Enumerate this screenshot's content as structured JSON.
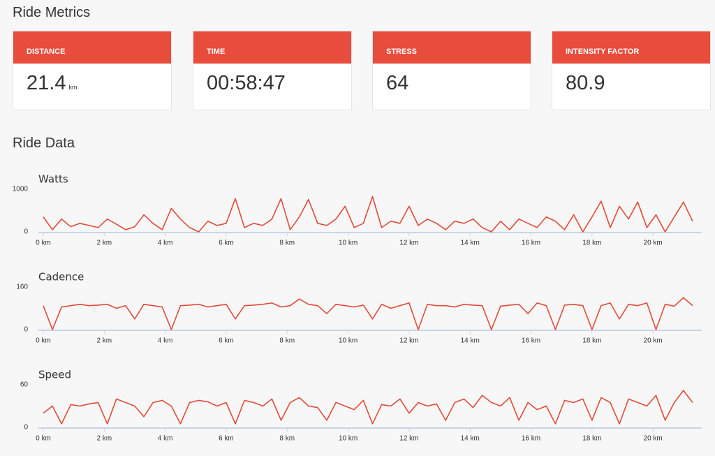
{
  "header": {
    "title": "Ride Metrics"
  },
  "metrics": [
    {
      "label": "DISTANCE",
      "value": 21.4,
      "unit": "km"
    },
    {
      "label": "TIME",
      "value": "00:58:47"
    },
    {
      "label": "STRESS",
      "value": 64
    },
    {
      "label": "INTENSITY FACTOR",
      "value": 80.9
    }
  ],
  "section_title": "Ride Data",
  "chart_data": [
    {
      "type": "line",
      "title": "Watts",
      "color": "#e04b3a",
      "grid": false,
      "x": [
        0,
        0.3,
        0.6,
        0.9,
        1.2,
        1.5,
        1.8,
        2.1,
        2.4,
        2.7,
        3,
        3.3,
        3.6,
        3.9,
        4.2,
        4.5,
        4.8,
        5.1,
        5.4,
        5.7,
        6,
        6.3,
        6.6,
        6.9,
        7.2,
        7.5,
        7.8,
        8.1,
        8.4,
        8.7,
        9,
        9.3,
        9.6,
        9.9,
        10.2,
        10.5,
        10.8,
        11.1,
        11.4,
        11.7,
        12,
        12.3,
        12.6,
        12.9,
        13.2,
        13.5,
        13.8,
        14.1,
        14.4,
        14.7,
        15,
        15.3,
        15.6,
        15.9,
        16.2,
        16.5,
        16.8,
        17.1,
        17.4,
        17.7,
        18,
        18.3,
        18.6,
        18.9,
        19.2,
        19.5,
        19.8,
        20.1,
        20.4,
        20.7,
        21,
        21.3
      ],
      "values": [
        350,
        50,
        300,
        120,
        200,
        150,
        100,
        300,
        180,
        50,
        120,
        400,
        200,
        50,
        550,
        300,
        100,
        0,
        250,
        150,
        200,
        780,
        100,
        200,
        150,
        300,
        780,
        50,
        350,
        760,
        200,
        150,
        300,
        600,
        100,
        200,
        830,
        100,
        250,
        200,
        600,
        150,
        300,
        200,
        50,
        250,
        200,
        300,
        100,
        0,
        250,
        50,
        300,
        200,
        100,
        350,
        250,
        50,
        400,
        0,
        350,
        720,
        100,
        600,
        300,
        700,
        100,
        400,
        0,
        350,
        700,
        250
      ],
      "xlim": [
        0,
        21.6
      ],
      "xticks": [
        {
          "value": 0,
          "label": "0 km"
        },
        {
          "value": 2,
          "label": "2 km"
        },
        {
          "value": 4,
          "label": "4 km"
        },
        {
          "value": 6,
          "label": "6 km"
        },
        {
          "value": 8,
          "label": "8 km"
        },
        {
          "value": 10,
          "label": "10 km"
        },
        {
          "value": 12,
          "label": "12 km"
        },
        {
          "value": 14,
          "label": "14 km"
        },
        {
          "value": 16,
          "label": "16 km"
        },
        {
          "value": 18,
          "label": "18 km"
        },
        {
          "value": 20,
          "label": "20 km"
        }
      ],
      "ylim": [
        0,
        1000
      ],
      "yticks": [
        0,
        1000
      ]
    },
    {
      "type": "line",
      "title": "Cadence",
      "color": "#e04b3a",
      "grid": false,
      "x": [
        0,
        0.3,
        0.6,
        0.9,
        1.2,
        1.5,
        1.8,
        2.1,
        2.4,
        2.7,
        3,
        3.3,
        3.6,
        3.9,
        4.2,
        4.5,
        4.8,
        5.1,
        5.4,
        5.7,
        6,
        6.3,
        6.6,
        6.9,
        7.2,
        7.5,
        7.8,
        8.1,
        8.4,
        8.7,
        9,
        9.3,
        9.6,
        9.9,
        10.2,
        10.5,
        10.8,
        11.1,
        11.4,
        11.7,
        12,
        12.3,
        12.6,
        12.9,
        13.2,
        13.5,
        13.8,
        14.1,
        14.4,
        14.7,
        15,
        15.3,
        15.6,
        15.9,
        16.2,
        16.5,
        16.8,
        17.1,
        17.4,
        17.7,
        18,
        18.3,
        18.6,
        18.9,
        19.2,
        19.5,
        19.8,
        20.1,
        20.4,
        20.7,
        21,
        21.3
      ],
      "values": [
        90,
        0,
        85,
        90,
        95,
        90,
        92,
        95,
        80,
        90,
        40,
        95,
        90,
        85,
        0,
        90,
        92,
        95,
        85,
        90,
        95,
        40,
        90,
        92,
        95,
        100,
        85,
        90,
        115,
        95,
        90,
        60,
        95,
        90,
        85,
        92,
        40,
        95,
        80,
        90,
        100,
        0,
        95,
        90,
        90,
        85,
        95,
        92,
        90,
        0,
        88,
        92,
        95,
        60,
        100,
        90,
        0,
        92,
        95,
        90,
        0,
        90,
        100,
        40,
        95,
        90,
        100,
        0,
        95,
        88,
        120,
        90
      ],
      "xlim": [
        0,
        21.6
      ],
      "xticks": [
        {
          "value": 0,
          "label": "0 km"
        },
        {
          "value": 2,
          "label": "2 km"
        },
        {
          "value": 4,
          "label": "4 km"
        },
        {
          "value": 6,
          "label": "6 km"
        },
        {
          "value": 8,
          "label": "8 km"
        },
        {
          "value": 10,
          "label": "10 km"
        },
        {
          "value": 12,
          "label": "12 km"
        },
        {
          "value": 14,
          "label": "14 km"
        },
        {
          "value": 16,
          "label": "16 km"
        },
        {
          "value": 18,
          "label": "18 km"
        },
        {
          "value": 20,
          "label": "20 km"
        }
      ],
      "ylim": [
        0,
        160
      ],
      "yticks": [
        0,
        160
      ]
    },
    {
      "type": "line",
      "title": "Speed",
      "color": "#e04b3a",
      "grid": false,
      "x": [
        0,
        0.3,
        0.6,
        0.9,
        1.2,
        1.5,
        1.8,
        2.1,
        2.4,
        2.7,
        3,
        3.3,
        3.6,
        3.9,
        4.2,
        4.5,
        4.8,
        5.1,
        5.4,
        5.7,
        6,
        6.3,
        6.6,
        6.9,
        7.2,
        7.5,
        7.8,
        8.1,
        8.4,
        8.7,
        9,
        9.3,
        9.6,
        9.9,
        10.2,
        10.5,
        10.8,
        11.1,
        11.4,
        11.7,
        12,
        12.3,
        12.6,
        12.9,
        13.2,
        13.5,
        13.8,
        14.1,
        14.4,
        14.7,
        15,
        15.3,
        15.6,
        15.9,
        16.2,
        16.5,
        16.8,
        17.1,
        17.4,
        17.7,
        18,
        18.3,
        18.6,
        18.9,
        19.2,
        19.5,
        19.8,
        20.1,
        20.4,
        20.7,
        21,
        21.3
      ],
      "values": [
        20,
        30,
        5,
        32,
        30,
        33,
        35,
        5,
        40,
        35,
        30,
        15,
        35,
        38,
        30,
        5,
        35,
        38,
        36,
        30,
        35,
        5,
        38,
        35,
        30,
        40,
        10,
        35,
        42,
        30,
        28,
        10,
        35,
        30,
        25,
        38,
        5,
        32,
        30,
        40,
        20,
        35,
        30,
        33,
        10,
        35,
        40,
        28,
        45,
        35,
        30,
        42,
        10,
        35,
        25,
        30,
        5,
        38,
        35,
        40,
        10,
        42,
        35,
        5,
        40,
        35,
        30,
        45,
        10,
        35,
        52,
        35
      ],
      "xlim": [
        0,
        21.6
      ],
      "xticks": [
        {
          "value": 0,
          "label": "0 km"
        },
        {
          "value": 2,
          "label": "2 km"
        },
        {
          "value": 4,
          "label": "4 km"
        },
        {
          "value": 6,
          "label": "6 km"
        },
        {
          "value": 8,
          "label": "8 km"
        },
        {
          "value": 10,
          "label": "10 km"
        },
        {
          "value": 12,
          "label": "12 km"
        },
        {
          "value": 14,
          "label": "14 km"
        },
        {
          "value": 16,
          "label": "16 km"
        },
        {
          "value": 18,
          "label": "18 km"
        },
        {
          "value": 20,
          "label": "20 km"
        }
      ],
      "ylim": [
        0,
        60
      ],
      "yticks": [
        0,
        60
      ]
    }
  ]
}
